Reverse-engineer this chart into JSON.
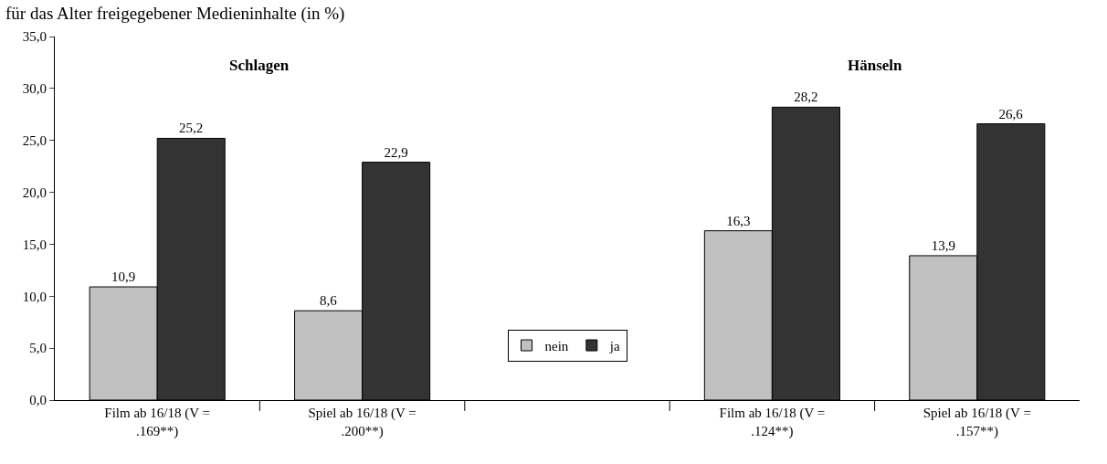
{
  "chart_data": {
    "type": "bar",
    "title": "für das Alter freigegebener Medieninhalte (in %)",
    "categories": [
      "Film ab 16/18 (V = .169**)",
      "Spiel ab 16/18 (V = .200**)",
      null,
      "Film ab 16/18 (V = .124**)",
      "Spiel ab 16/18 (V = .157**)"
    ],
    "series": [
      {
        "name": "nein",
        "color": "#c0c0c0",
        "values": [
          10.9,
          8.6,
          null,
          16.3,
          13.9
        ],
        "value_labels": [
          "10,9",
          "8,6",
          null,
          "16,3",
          "13,9"
        ]
      },
      {
        "name": "ja",
        "color": "#333333",
        "values": [
          25.2,
          22.9,
          null,
          28.2,
          26.6
        ],
        "value_labels": [
          "25,2",
          "22,9",
          null,
          "28,2",
          "26,6"
        ]
      }
    ],
    "annotations": [
      "Schlagen",
      "Hänseln"
    ],
    "ylim": [
      0,
      35
    ],
    "yticks": [
      {
        "value": 0,
        "label": "0,0"
      },
      {
        "value": 5,
        "label": "5,0"
      },
      {
        "value": 10,
        "label": "10,0"
      },
      {
        "value": 15,
        "label": "15,0"
      },
      {
        "value": 20,
        "label": "20,0"
      },
      {
        "value": 25,
        "label": "25,0"
      },
      {
        "value": 30,
        "label": "30,0"
      },
      {
        "value": 35,
        "label": "35,0"
      }
    ],
    "grid": false,
    "legend": "bottom"
  }
}
